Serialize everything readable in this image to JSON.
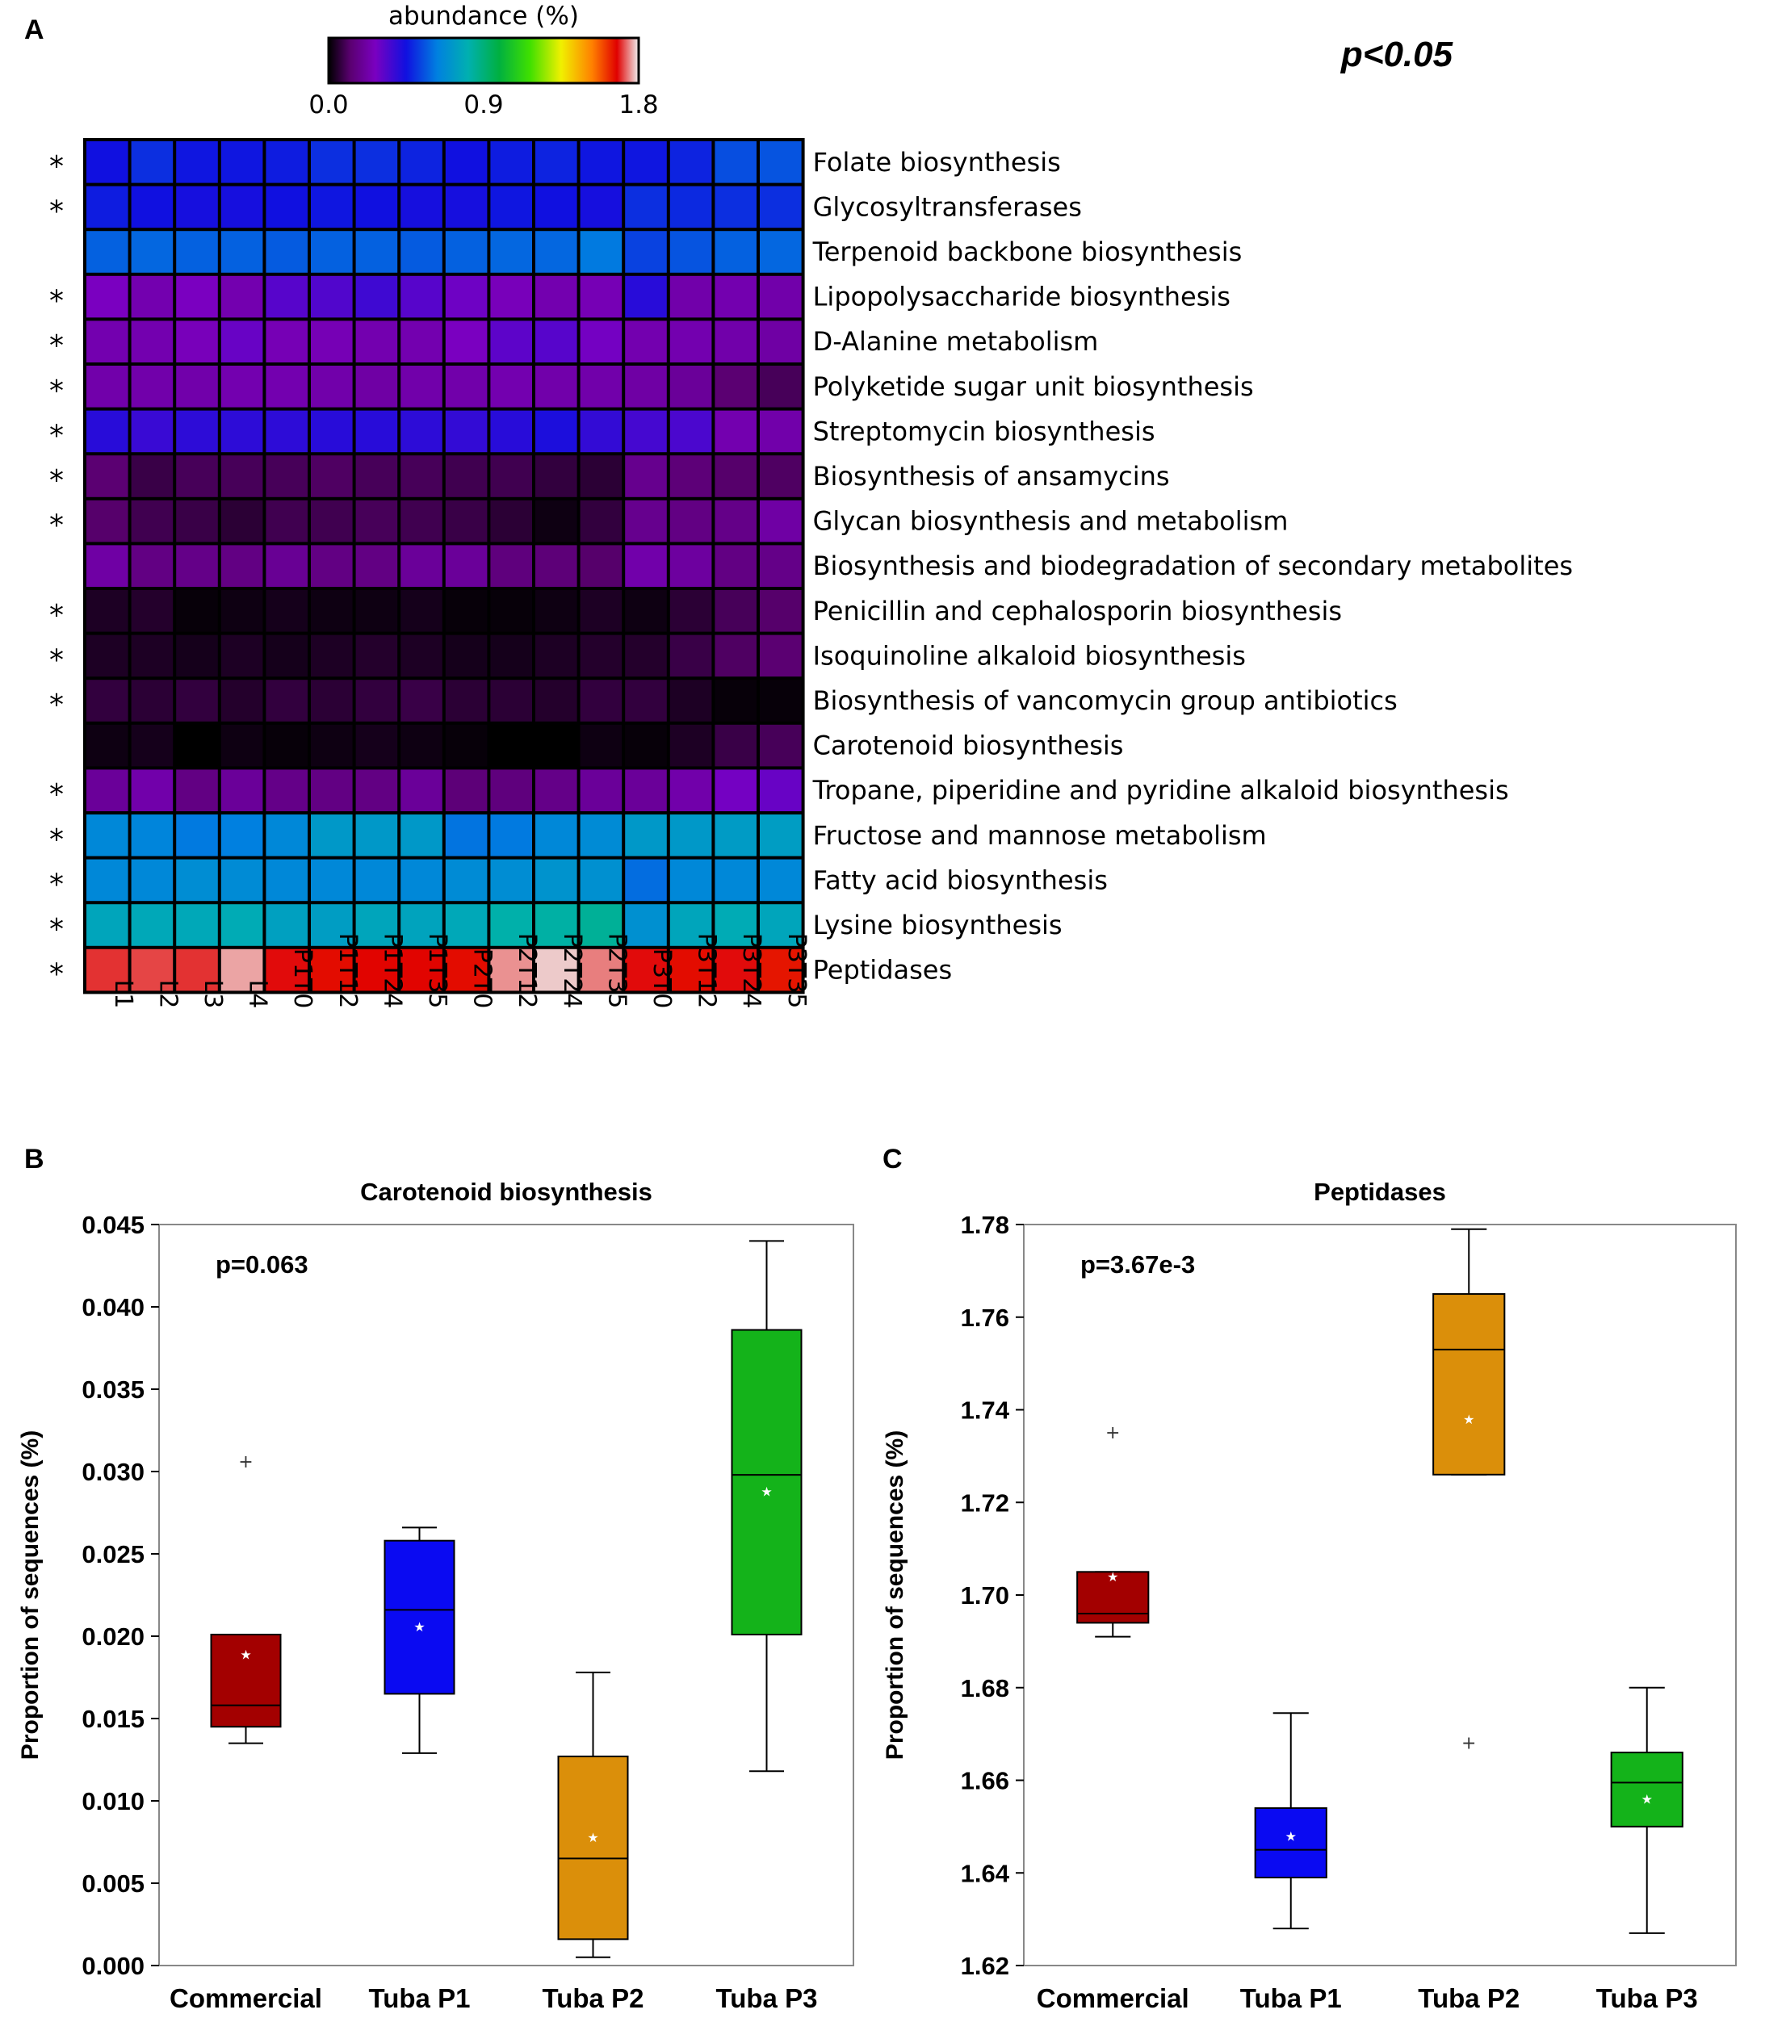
{
  "chart_data": [
    {
      "panel": "A",
      "type": "heatmap",
      "colorbar": {
        "title": "abundance (%)",
        "min": 0.0,
        "mid": 0.9,
        "max": 1.8,
        "tick_labels": [
          "0.0",
          "0.9",
          "1.8"
        ]
      },
      "significance_note": "p<0.05",
      "columns": [
        "L1",
        "L2",
        "L3",
        "L4",
        "P1T0",
        "P1T12",
        "P1T24",
        "P1T35",
        "P2T0",
        "P2T12",
        "P2T24",
        "P2T35",
        "P3T0",
        "P3T12",
        "P3T24",
        "P3T35"
      ],
      "rows": [
        {
          "label": "Folate biosynthesis",
          "sig": "*",
          "values": [
            0.45,
            0.5,
            0.46,
            0.46,
            0.47,
            0.5,
            0.5,
            0.48,
            0.45,
            0.47,
            0.48,
            0.46,
            0.46,
            0.48,
            0.55,
            0.56
          ]
        },
        {
          "label": "Glycosyltransferases",
          "sig": "*",
          "values": [
            0.47,
            0.45,
            0.44,
            0.44,
            0.45,
            0.46,
            0.45,
            0.44,
            0.44,
            0.46,
            0.45,
            0.44,
            0.5,
            0.49,
            0.5,
            0.5
          ]
        },
        {
          "label": "Terpenoid backbone biosynthesis",
          "sig": "",
          "values": [
            0.58,
            0.59,
            0.58,
            0.58,
            0.57,
            0.58,
            0.58,
            0.57,
            0.58,
            0.59,
            0.59,
            0.62,
            0.53,
            0.56,
            0.58,
            0.59
          ]
        },
        {
          "label": "Lipopolysaccharide biosynthesis",
          "sig": "*",
          "values": [
            0.27,
            0.24,
            0.27,
            0.24,
            0.33,
            0.34,
            0.37,
            0.33,
            0.29,
            0.26,
            0.24,
            0.25,
            0.41,
            0.23,
            0.24,
            0.23
          ]
        },
        {
          "label": "D-Alanine metabolism",
          "sig": "*",
          "values": [
            0.24,
            0.24,
            0.26,
            0.3,
            0.25,
            0.25,
            0.24,
            0.24,
            0.27,
            0.32,
            0.33,
            0.28,
            0.24,
            0.24,
            0.23,
            0.22
          ]
        },
        {
          "label": "Polyketide sugar unit biosynthesis",
          "sig": "*",
          "values": [
            0.23,
            0.23,
            0.23,
            0.24,
            0.24,
            0.23,
            0.22,
            0.23,
            0.23,
            0.24,
            0.23,
            0.23,
            0.22,
            0.2,
            0.13,
            0.1
          ]
        },
        {
          "label": "Streptomycin biosynthesis",
          "sig": "*",
          "values": [
            0.41,
            0.38,
            0.4,
            0.4,
            0.4,
            0.41,
            0.41,
            0.4,
            0.39,
            0.41,
            0.43,
            0.39,
            0.36,
            0.35,
            0.24,
            0.23
          ]
        },
        {
          "label": "Biosynthesis of ansamycins",
          "sig": "*",
          "values": [
            0.13,
            0.08,
            0.1,
            0.1,
            0.1,
            0.11,
            0.1,
            0.1,
            0.09,
            0.09,
            0.07,
            0.06,
            0.18,
            0.14,
            0.12,
            0.11
          ]
        },
        {
          "label": "Glycan biosynthesis and metabolism",
          "sig": "*",
          "values": [
            0.12,
            0.09,
            0.08,
            0.06,
            0.09,
            0.09,
            0.1,
            0.09,
            0.08,
            0.06,
            0.02,
            0.07,
            0.18,
            0.16,
            0.17,
            0.22
          ]
        },
        {
          "label": "Biosynthesis and biodegradation of secondary metabolites",
          "sig": "",
          "values": [
            0.22,
            0.16,
            0.17,
            0.16,
            0.19,
            0.16,
            0.16,
            0.2,
            0.2,
            0.15,
            0.14,
            0.12,
            0.23,
            0.21,
            0.16,
            0.17
          ]
        },
        {
          "label": "Penicillin and cephalosporin biosynthesis",
          "sig": "*",
          "values": [
            0.04,
            0.05,
            0.01,
            0.02,
            0.03,
            0.02,
            0.02,
            0.03,
            0.01,
            0.01,
            0.02,
            0.04,
            0.02,
            0.06,
            0.1,
            0.12
          ]
        },
        {
          "label": "Isoquinoline alkaloid biosynthesis",
          "sig": "*",
          "values": [
            0.04,
            0.04,
            0.03,
            0.04,
            0.03,
            0.04,
            0.05,
            0.04,
            0.03,
            0.03,
            0.04,
            0.05,
            0.05,
            0.08,
            0.11,
            0.13
          ]
        },
        {
          "label": "Biosynthesis of vancomycin group antibiotics",
          "sig": "*",
          "values": [
            0.07,
            0.06,
            0.07,
            0.05,
            0.07,
            0.06,
            0.07,
            0.08,
            0.06,
            0.06,
            0.05,
            0.07,
            0.07,
            0.04,
            0.01,
            0.01
          ]
        },
        {
          "label": "Carotenoid biosynthesis",
          "sig": "",
          "values": [
            0.02,
            0.03,
            0.0,
            0.02,
            0.01,
            0.02,
            0.03,
            0.02,
            0.01,
            0.0,
            0.0,
            0.02,
            0.01,
            0.04,
            0.08,
            0.1
          ]
        },
        {
          "label": "Tropane, piperidine and pyridine alkaloid biosynthesis",
          "sig": "*",
          "values": [
            0.2,
            0.23,
            0.16,
            0.2,
            0.17,
            0.16,
            0.16,
            0.2,
            0.14,
            0.15,
            0.17,
            0.2,
            0.2,
            0.23,
            0.28,
            0.3
          ]
        },
        {
          "label": "Fructose and mannose metabolism",
          "sig": "*",
          "values": [
            0.66,
            0.65,
            0.62,
            0.63,
            0.66,
            0.72,
            0.72,
            0.72,
            0.61,
            0.62,
            0.66,
            0.67,
            0.72,
            0.72,
            0.73,
            0.74
          ]
        },
        {
          "label": "Fatty acid biosynthesis",
          "sig": "*",
          "values": [
            0.66,
            0.66,
            0.68,
            0.67,
            0.66,
            0.66,
            0.66,
            0.66,
            0.67,
            0.68,
            0.7,
            0.69,
            0.6,
            0.66,
            0.66,
            0.66
          ]
        },
        {
          "label": "Lysine biosynthesis",
          "sig": "*",
          "values": [
            0.77,
            0.78,
            0.78,
            0.79,
            0.75,
            0.74,
            0.77,
            0.76,
            0.78,
            0.82,
            0.83,
            0.85,
            0.69,
            0.77,
            0.79,
            0.77
          ]
        },
        {
          "label": "Peptidases",
          "sig": "*",
          "values": [
            1.7,
            1.71,
            1.7,
            1.76,
            1.68,
            1.66,
            1.67,
            1.67,
            1.66,
            1.75,
            1.78,
            1.74,
            1.68,
            1.66,
            1.68,
            1.65
          ]
        }
      ]
    },
    {
      "panel": "B",
      "type": "box",
      "title": "Carotenoid biosynthesis",
      "ylabel": "Proportion of sequences (%)",
      "ylim": [
        0.0,
        0.045
      ],
      "yticks": [
        "0.000",
        "0.005",
        "0.010",
        "0.015",
        "0.020",
        "0.025",
        "0.030",
        "0.035",
        "0.040",
        "0.045"
      ],
      "annotation": "p=0.063",
      "categories": [
        "Commercial",
        "Tuba P1",
        "Tuba P2",
        "Tuba P3"
      ],
      "colors": [
        "#a30000",
        "#0a0af2",
        "#db8f0a",
        "#14b31a"
      ],
      "boxes": [
        {
          "whisker_low": 0.0135,
          "q1": 0.0145,
          "median": 0.0158,
          "q3": 0.0201,
          "whisker_high": 0.0201,
          "mean": 0.0189,
          "outliers": [
            0.0306
          ]
        },
        {
          "whisker_low": 0.0129,
          "q1": 0.0165,
          "median": 0.0216,
          "q3": 0.0258,
          "whisker_high": 0.0266,
          "mean": 0.0206,
          "outliers": []
        },
        {
          "whisker_low": 0.0005,
          "q1": 0.0016,
          "median": 0.0065,
          "q3": 0.0127,
          "whisker_high": 0.0178,
          "mean": 0.0078,
          "outliers": []
        },
        {
          "whisker_low": 0.0118,
          "q1": 0.0201,
          "median": 0.0298,
          "q3": 0.0386,
          "whisker_high": 0.044,
          "mean": 0.0288,
          "outliers": []
        }
      ]
    },
    {
      "panel": "C",
      "type": "box",
      "title": "Peptidases",
      "ylabel": "Proportion of sequences (%)",
      "ylim": [
        1.62,
        1.78
      ],
      "yticks": [
        "1.62",
        "1.64",
        "1.66",
        "1.68",
        "1.70",
        "1.72",
        "1.74",
        "1.76",
        "1.78"
      ],
      "annotation": "p=3.67e-3",
      "categories": [
        "Commercial",
        "Tuba P1",
        "Tuba P2",
        "Tuba P3"
      ],
      "colors": [
        "#a30000",
        "#0a0af2",
        "#db8f0a",
        "#14b31a"
      ],
      "boxes": [
        {
          "whisker_low": 1.691,
          "q1": 1.694,
          "median": 1.696,
          "q3": 1.705,
          "whisker_high": 1.705,
          "mean": 1.704,
          "outliers": [
            1.735
          ]
        },
        {
          "whisker_low": 1.628,
          "q1": 1.639,
          "median": 1.645,
          "q3": 1.654,
          "whisker_high": 1.6745,
          "mean": 1.648,
          "outliers": []
        },
        {
          "whisker_low": 1.726,
          "q1": 1.726,
          "median": 1.753,
          "q3": 1.765,
          "whisker_high": 1.779,
          "mean": 1.738,
          "outliers": [
            1.668
          ]
        },
        {
          "whisker_low": 1.627,
          "q1": 1.65,
          "median": 1.6595,
          "q3": 1.666,
          "whisker_high": 1.68,
          "mean": 1.656,
          "outliers": []
        }
      ]
    }
  ]
}
